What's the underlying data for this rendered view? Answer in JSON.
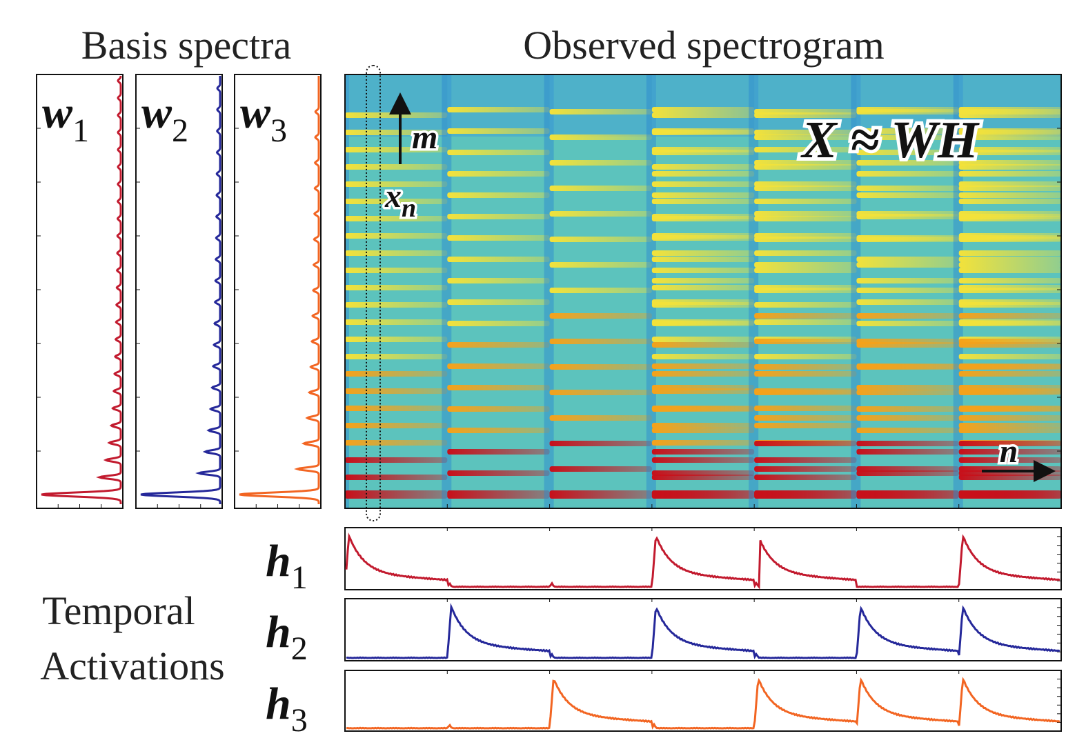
{
  "header": {
    "left": "Basis spectra",
    "right": "Observed spectrogram"
  },
  "basis": [
    {
      "symbol": "w",
      "sub": "1",
      "color": "#c21a2e"
    },
    {
      "symbol": "w",
      "sub": "2",
      "color": "#25289a"
    },
    {
      "symbol": "w",
      "sub": "3",
      "color": "#f26522"
    }
  ],
  "spectrogram": {
    "equation": "X ≈ WH",
    "axis_up": "m",
    "column": {
      "symbol": "x",
      "sub": "n"
    },
    "axis_right": "n"
  },
  "activations": {
    "label_lines": [
      "Temporal",
      "Activations"
    ],
    "rows": [
      {
        "symbol": "h",
        "sub": "1",
        "color": "#c21a2e"
      },
      {
        "symbol": "h",
        "sub": "2",
        "color": "#25289a"
      },
      {
        "symbol": "h",
        "sub": "3",
        "color": "#f26522"
      }
    ]
  }
}
